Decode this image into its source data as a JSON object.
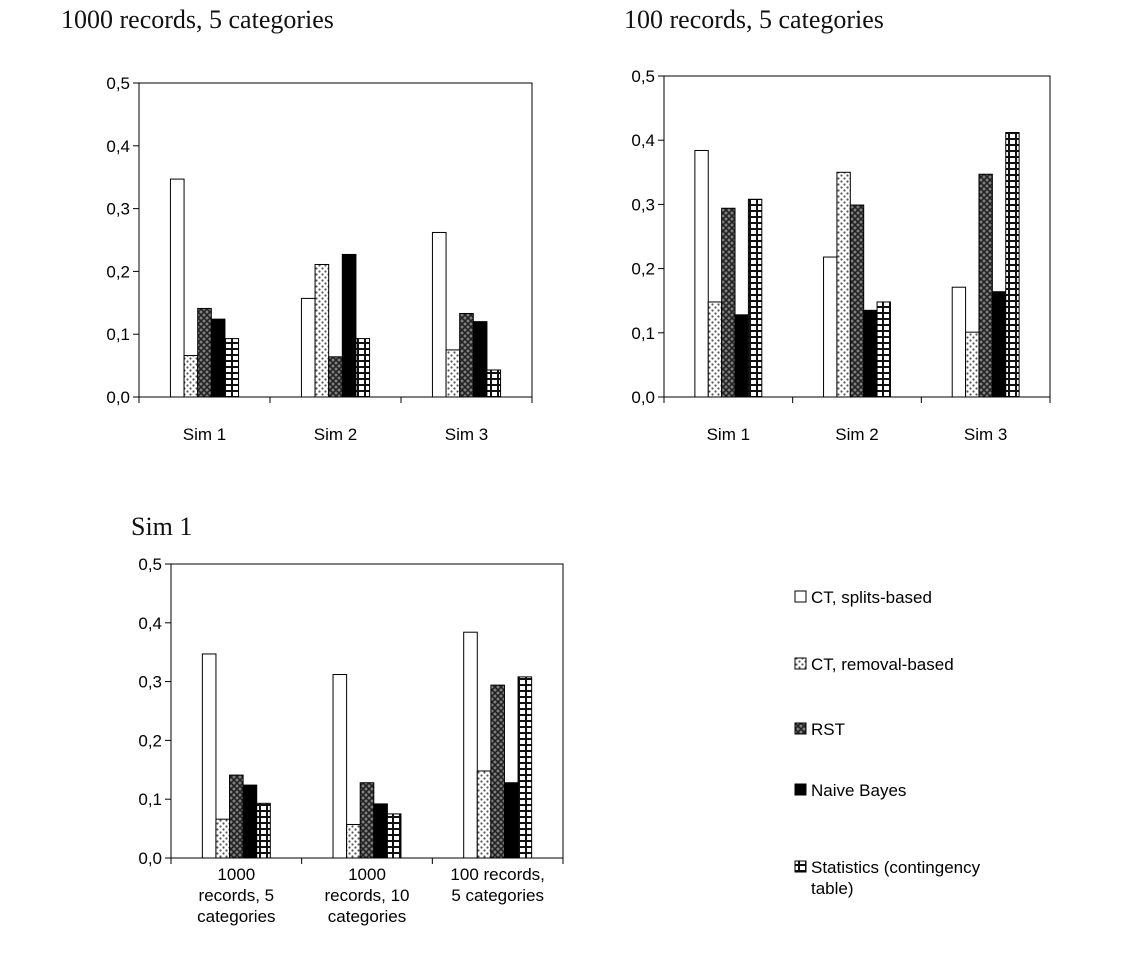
{
  "chart_data": [
    {
      "type": "bar",
      "title": "1000 records, 5 categories",
      "categories": [
        [
          "Sim 1"
        ],
        [
          "Sim 2"
        ],
        [
          "Sim 3"
        ]
      ],
      "ylim": [
        0,
        0.5
      ],
      "yticks": [
        "0,0",
        "0,1",
        "0,2",
        "0,3",
        "0,4",
        "0,5"
      ],
      "series": [
        {
          "name": "CT, splits-based",
          "values": [
            0.347,
            0.157,
            0.262
          ]
        },
        {
          "name": "CT, removal-based",
          "values": [
            0.066,
            0.211,
            0.075
          ]
        },
        {
          "name": "RST",
          "values": [
            0.141,
            0.064,
            0.133
          ]
        },
        {
          "name": "Naive Bayes",
          "values": [
            0.124,
            0.227,
            0.12
          ]
        },
        {
          "name": "Statistics (contingency table)",
          "values": [
            0.093,
            0.093,
            0.043
          ]
        }
      ]
    },
    {
      "type": "bar",
      "title": "100 records, 5 categories",
      "categories": [
        [
          "Sim 1"
        ],
        [
          "Sim 2"
        ],
        [
          "Sim 3"
        ]
      ],
      "ylim": [
        0,
        0.5
      ],
      "yticks": [
        "0,0",
        "0,1",
        "0,2",
        "0,3",
        "0,4",
        "0,5"
      ],
      "series": [
        {
          "name": "CT, splits-based",
          "values": [
            0.384,
            0.218,
            0.171
          ]
        },
        {
          "name": "CT, removal-based",
          "values": [
            0.148,
            0.35,
            0.101
          ]
        },
        {
          "name": "RST",
          "values": [
            0.294,
            0.299,
            0.347
          ]
        },
        {
          "name": "Naive Bayes",
          "values": [
            0.128,
            0.135,
            0.164
          ]
        },
        {
          "name": "Statistics (contingency table)",
          "values": [
            0.308,
            0.148,
            0.412
          ]
        }
      ]
    },
    {
      "type": "bar",
      "title": "Sim 1",
      "categories": [
        [
          "1000",
          "records, 5",
          "categories"
        ],
        [
          "1000",
          "records, 10",
          "categories"
        ],
        [
          "100 records,",
          "5 categories"
        ]
      ],
      "ylim": [
        0,
        0.5
      ],
      "yticks": [
        "0,0",
        "0,1",
        "0,2",
        "0,3",
        "0,4",
        "0,5"
      ],
      "series": [
        {
          "name": "CT, splits-based",
          "values": [
            0.347,
            0.312,
            0.384
          ]
        },
        {
          "name": "CT, removal-based",
          "values": [
            0.066,
            0.057,
            0.148
          ]
        },
        {
          "name": "RST",
          "values": [
            0.141,
            0.128,
            0.294
          ]
        },
        {
          "name": "Naive Bayes",
          "values": [
            0.124,
            0.092,
            0.128
          ]
        },
        {
          "name": "Statistics (contingency table)",
          "values": [
            0.093,
            0.075,
            0.308
          ]
        }
      ]
    }
  ],
  "legend": {
    "placement": "right",
    "items": [
      {
        "lines": [
          "CT, splits-based"
        ],
        "pattern": "white"
      },
      {
        "lines": [
          "CT, removal-based"
        ],
        "pattern": "dots"
      },
      {
        "lines": [
          "RST"
        ],
        "pattern": "cross"
      },
      {
        "lines": [
          "Naive Bayes"
        ],
        "pattern": "black"
      },
      {
        "lines": [
          "Statistics (contingency",
          "table)"
        ],
        "pattern": "grid"
      }
    ]
  }
}
